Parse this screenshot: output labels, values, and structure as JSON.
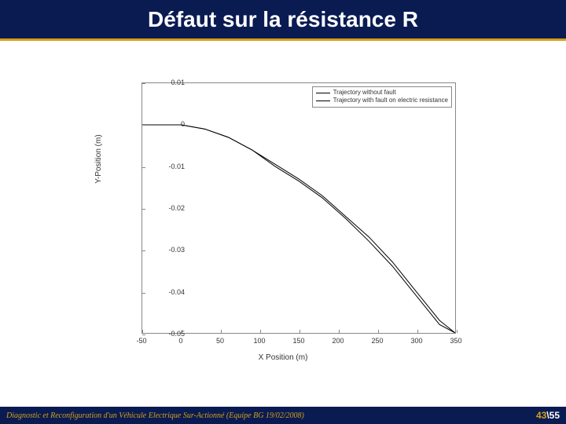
{
  "title": "Défaut sur la résistance R",
  "title_color": "#ffffff",
  "title_bg": "#0a1b52",
  "title_underline": "#d4a017",
  "chart": {
    "type": "line",
    "xlabel": "X Position (m)",
    "ylabel": "Y-Position (m)",
    "label_fontsize": 10,
    "tick_fontsize": 9,
    "xlim": [
      -50,
      350
    ],
    "ylim": [
      -0.05,
      0.01
    ],
    "xticks": [
      -50,
      0,
      50,
      100,
      150,
      200,
      250,
      300,
      350
    ],
    "yticks": [
      -0.05,
      -0.04,
      -0.03,
      -0.02,
      -0.01,
      0,
      0.01
    ],
    "ytick_labels": [
      "-0.05",
      "-0.04",
      "-0.03",
      "-0.02",
      "-0.01",
      "0",
      "0.01"
    ],
    "grid": false,
    "border_color": "#888888",
    "background_color": "#ffffff",
    "tick_color": "#333333",
    "legend": {
      "position": "top-right",
      "border_color": "#888888",
      "items": [
        {
          "label": "Trajectory without fault",
          "color": "#000000"
        },
        {
          "label": "Trajectory with fault on electric resistance",
          "color": "#000000"
        }
      ]
    },
    "series": [
      {
        "name": "without-fault",
        "color": "#000000",
        "line_width": 1,
        "points": [
          [
            -50,
            0
          ],
          [
            0,
            0
          ],
          [
            30,
            -0.001
          ],
          [
            60,
            -0.003
          ],
          [
            90,
            -0.006
          ],
          [
            120,
            -0.0095
          ],
          [
            150,
            -0.013
          ],
          [
            180,
            -0.017
          ],
          [
            210,
            -0.022
          ],
          [
            240,
            -0.027
          ],
          [
            270,
            -0.033
          ],
          [
            300,
            -0.04
          ],
          [
            330,
            -0.047
          ],
          [
            350,
            -0.05
          ]
        ]
      },
      {
        "name": "with-fault",
        "color": "#000000",
        "line_width": 1,
        "points": [
          [
            -50,
            0
          ],
          [
            0,
            0
          ],
          [
            30,
            -0.001
          ],
          [
            60,
            -0.003
          ],
          [
            90,
            -0.006
          ],
          [
            120,
            -0.01
          ],
          [
            150,
            -0.0135
          ],
          [
            180,
            -0.0175
          ],
          [
            210,
            -0.0225
          ],
          [
            240,
            -0.028
          ],
          [
            270,
            -0.034
          ],
          [
            300,
            -0.041
          ],
          [
            330,
            -0.048
          ],
          [
            350,
            -0.05
          ]
        ]
      }
    ]
  },
  "footer": {
    "left_text": "Diagnostic et Reconfiguration d'un Véhicule Electrique Sur-Actionné (Equipe BG 19/02/2008)",
    "page_current": "43",
    "page_sep": "\\",
    "page_total": "55",
    "bg": "#0a1b52",
    "accent_color": "#d4a017",
    "text_color_alt": "#ffffff"
  }
}
